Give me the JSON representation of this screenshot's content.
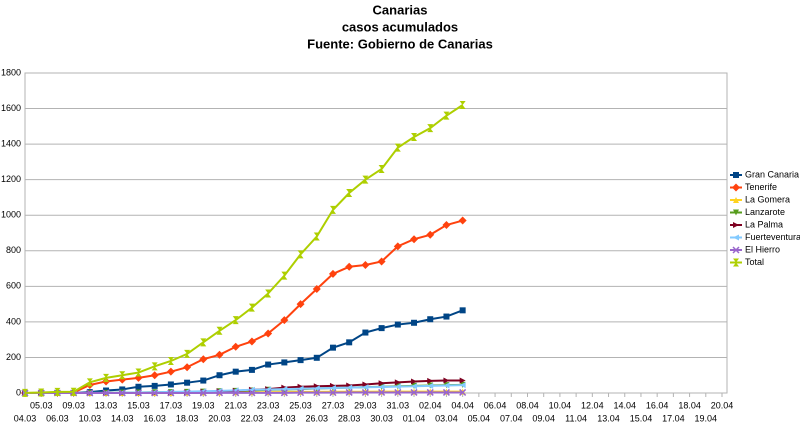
{
  "chart_data": {
    "type": "line",
    "title": [
      "Canarias",
      "casos acumulados",
      "Fuente: Gobierno de Canarias"
    ],
    "categories": [
      "04.03",
      "05.03",
      "06.03",
      "09.03",
      "10.03",
      "13.03",
      "14.03",
      "15.03",
      "16.03",
      "17.03",
      "18.03",
      "19.03",
      "20.03",
      "21.03",
      "22.03",
      "23.03",
      "24.03",
      "25.03",
      "26.03",
      "27.03",
      "28.03",
      "29.03",
      "30.03",
      "31.03",
      "01.04",
      "02.04",
      "03.04",
      "04.04",
      "05.04",
      "06.04",
      "07.04",
      "08.04",
      "09.04",
      "10.04",
      "11.04",
      "12.04",
      "13.04",
      "14.04",
      "15.04",
      "16.04",
      "17.04",
      "18.04",
      "19.04",
      "20.04"
    ],
    "ylim": [
      0,
      1800
    ],
    "yticks": [
      0,
      200,
      400,
      600,
      800,
      1000,
      1200,
      1400,
      1600,
      1800
    ],
    "grid": true,
    "legend": "right",
    "series": [
      {
        "name": "Gran Canaria",
        "color": "#004586",
        "values": [
          0,
          0,
          0,
          0,
          5,
          14,
          20,
          35,
          40,
          48,
          58,
          70,
          100,
          120,
          130,
          160,
          172,
          185,
          198,
          255,
          285,
          340,
          365,
          385,
          395,
          415,
          430,
          465,
          null,
          null,
          null,
          null,
          null,
          null,
          null,
          null,
          null,
          null,
          null,
          null,
          null,
          null,
          null,
          null
        ]
      },
      {
        "name": "Tenerife",
        "color": "#ff420e",
        "values": [
          0,
          1,
          2,
          3,
          45,
          65,
          75,
          85,
          100,
          120,
          145,
          190,
          215,
          260,
          290,
          335,
          410,
          500,
          585,
          670,
          710,
          720,
          740,
          825,
          865,
          890,
          945,
          970,
          null,
          null,
          null,
          null,
          null,
          null,
          null,
          null,
          null,
          null,
          null,
          null,
          null,
          null,
          null,
          null
        ]
      },
      {
        "name": "La Gomera",
        "color": "#ffd320",
        "values": [
          0,
          0,
          0,
          0,
          0,
          0,
          0,
          0,
          1,
          1,
          2,
          3,
          3,
          4,
          4,
          5,
          5,
          6,
          6,
          7,
          7,
          7,
          8,
          8,
          8,
          8,
          8,
          8,
          null,
          null,
          null,
          null,
          null,
          null,
          null,
          null,
          null,
          null,
          null,
          null,
          null,
          null,
          null,
          null
        ]
      },
      {
        "name": "Lanzarote",
        "color": "#579d1c",
        "values": [
          0,
          0,
          0,
          0,
          0,
          1,
          2,
          3,
          4,
          5,
          6,
          8,
          10,
          12,
          14,
          18,
          20,
          22,
          25,
          28,
          30,
          33,
          35,
          38,
          40,
          42,
          44,
          46,
          null,
          null,
          null,
          null,
          null,
          null,
          null,
          null,
          null,
          null,
          null,
          null,
          null,
          null,
          null,
          null
        ]
      },
      {
        "name": "La Palma",
        "color": "#7e0021",
        "values": [
          0,
          0,
          0,
          0,
          0,
          0,
          0,
          0,
          0,
          0,
          3,
          7,
          10,
          12,
          18,
          22,
          30,
          35,
          38,
          40,
          42,
          48,
          55,
          60,
          65,
          68,
          70,
          70,
          null,
          null,
          null,
          null,
          null,
          null,
          null,
          null,
          null,
          null,
          null,
          null,
          null,
          null,
          null,
          null
        ]
      },
      {
        "name": "Fuerteventura",
        "color": "#83caff",
        "values": [
          0,
          0,
          0,
          0,
          1,
          1,
          2,
          3,
          4,
          6,
          8,
          10,
          12,
          15,
          18,
          20,
          22,
          24,
          26,
          28,
          30,
          32,
          34,
          36,
          38,
          40,
          42,
          44,
          null,
          null,
          null,
          null,
          null,
          null,
          null,
          null,
          null,
          null,
          null,
          null,
          null,
          null,
          null,
          null
        ]
      },
      {
        "name": "El Hierro",
        "color": "#9966cc",
        "values": [
          0,
          0,
          0,
          0,
          0,
          0,
          0,
          0,
          0,
          0,
          0,
          0,
          1,
          1,
          1,
          1,
          1,
          2,
          2,
          2,
          3,
          3,
          3,
          3,
          3,
          3,
          3,
          3,
          null,
          null,
          null,
          null,
          null,
          null,
          null,
          null,
          null,
          null,
          null,
          null,
          null,
          null,
          null,
          null
        ]
      },
      {
        "name": "Total",
        "color": "#aecf00",
        "values": [
          1,
          3,
          6,
          7,
          60,
          85,
          100,
          115,
          150,
          180,
          220,
          285,
          350,
          410,
          480,
          560,
          660,
          780,
          880,
          1030,
          1125,
          1200,
          1260,
          1380,
          1440,
          1490,
          1560,
          1620,
          null,
          null,
          null,
          null,
          null,
          null,
          null,
          null,
          null,
          null,
          null,
          null,
          null,
          null,
          null,
          null
        ]
      }
    ]
  }
}
